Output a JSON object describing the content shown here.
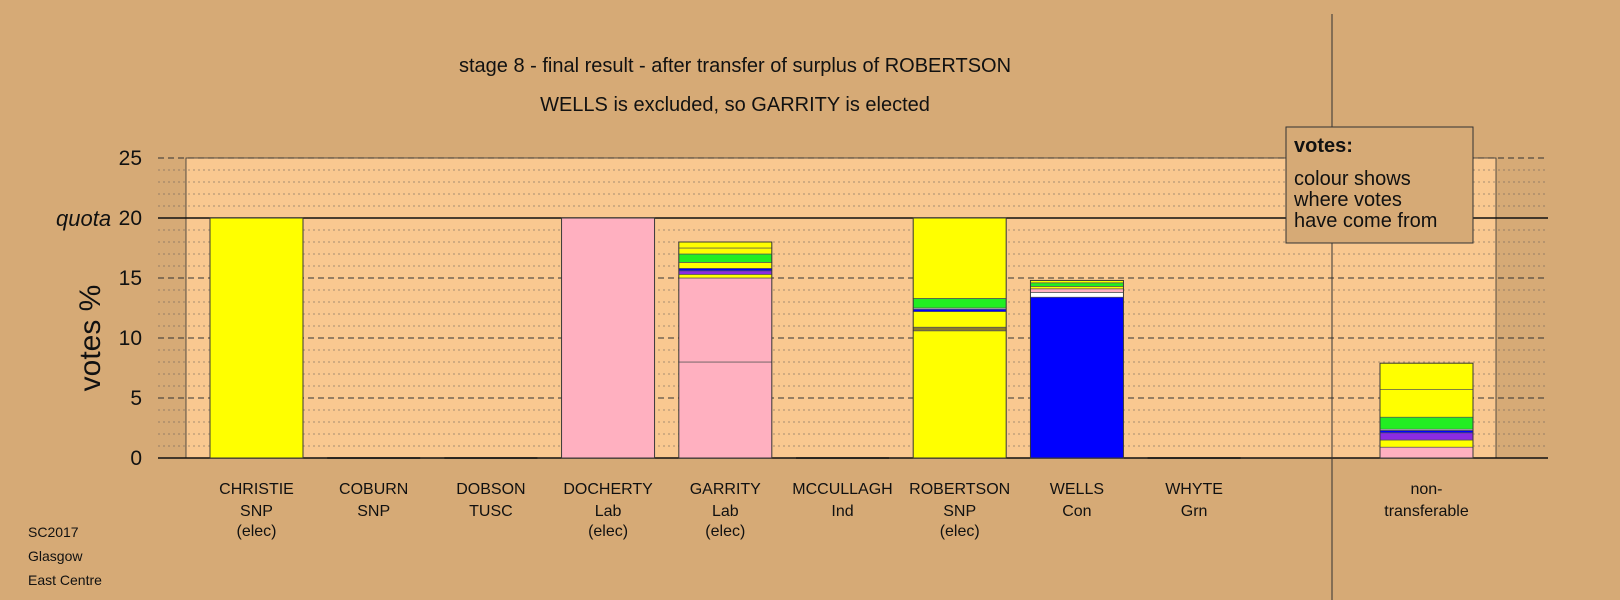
{
  "chart_data": {
    "type": "bar",
    "stacked": true,
    "title": "stage 8 - final result - after transfer of surplus of ROBERTSON",
    "subtitle": "WELLS is excluded, so GARRITY is elected",
    "ylabel": "votes %",
    "ylim": [
      0,
      25
    ],
    "yticks": [
      0,
      5,
      10,
      15,
      20,
      25
    ],
    "quota": 20,
    "quota_label": "quota",
    "grid": true,
    "legend": {
      "title": "votes:",
      "lines": [
        "colour shows",
        "where votes",
        "have come from"
      ],
      "placement": "top-right"
    },
    "candidates": [
      {
        "name": "CHRISTIE",
        "party": "SNP",
        "status": "(elec)",
        "segments": [
          {
            "color": "#ffff00",
            "value": 20.0
          }
        ]
      },
      {
        "name": "COBURN",
        "party": "SNP",
        "status": "",
        "segments": []
      },
      {
        "name": "DOBSON",
        "party": "TUSC",
        "status": "",
        "segments": []
      },
      {
        "name": "DOCHERTY",
        "party": "Lab",
        "status": "(elec)",
        "segments": [
          {
            "color": "#ffb0c0",
            "value": 20.0
          }
        ]
      },
      {
        "name": "GARRITY",
        "party": "Lab",
        "status": "(elec)",
        "segments": [
          {
            "color": "#ffb0c0",
            "value": 8.0
          },
          {
            "color": "#ffb0c0",
            "value": 7.0
          },
          {
            "color": "#ffff00",
            "value": 0.3
          },
          {
            "color": "#8b2be2",
            "value": 0.3
          },
          {
            "color": "#0000ff",
            "value": 0.2
          },
          {
            "color": "#ffff00",
            "value": 0.5
          },
          {
            "color": "#22ee22",
            "value": 0.7
          },
          {
            "color": "#ffff00",
            "value": 0.5
          },
          {
            "color": "#ffff00",
            "value": 0.5
          }
        ]
      },
      {
        "name": "MCCULLAGH",
        "party": "Ind",
        "status": "",
        "segments": []
      },
      {
        "name": "ROBERTSON",
        "party": "SNP",
        "status": "(elec)",
        "segments": [
          {
            "color": "#ffff00",
            "value": 10.6
          },
          {
            "color": "#8b7b2b",
            "value": 0.3
          },
          {
            "color": "#ffff00",
            "value": 1.3
          },
          {
            "color": "#0000ff",
            "value": 0.2
          },
          {
            "color": "#ffffff",
            "value": 0.1
          },
          {
            "color": "#22ee22",
            "value": 0.8
          },
          {
            "color": "#ffff00",
            "value": 6.7
          }
        ]
      },
      {
        "name": "WELLS",
        "party": "Con",
        "status": "",
        "segments": [
          {
            "color": "#0000ff",
            "value": 13.4
          },
          {
            "color": "#ffffff",
            "value": 0.4
          },
          {
            "color": "#ffb0c0",
            "value": 0.3
          },
          {
            "color": "#ffff00",
            "value": 0.2
          },
          {
            "color": "#22ee22",
            "value": 0.3
          },
          {
            "color": "#ffff00",
            "value": 0.2
          }
        ]
      },
      {
        "name": "WHYTE",
        "party": "Grn",
        "status": "",
        "segments": []
      }
    ],
    "nontransferable": {
      "label_lines": [
        "non-",
        "transferable"
      ],
      "segments": [
        {
          "color": "#ffb0c0",
          "value": 0.9
        },
        {
          "color": "#ffff00",
          "value": 0.6
        },
        {
          "color": "#8b2be2",
          "value": 0.6
        },
        {
          "color": "#0000ff",
          "value": 0.2
        },
        {
          "color": "#ffffff",
          "value": 0.1
        },
        {
          "color": "#22ee22",
          "value": 1.0
        },
        {
          "color": "#ffff00",
          "value": 2.3
        },
        {
          "color": "#ffff00",
          "value": 2.2
        }
      ]
    },
    "colors": {
      "background": "#d6aa76",
      "plot_background": "#f9c890",
      "legend_background": "#d6aa76"
    }
  },
  "footer": {
    "line1": "SC2017",
    "line2": "Glasgow",
    "line3": "East Centre"
  }
}
